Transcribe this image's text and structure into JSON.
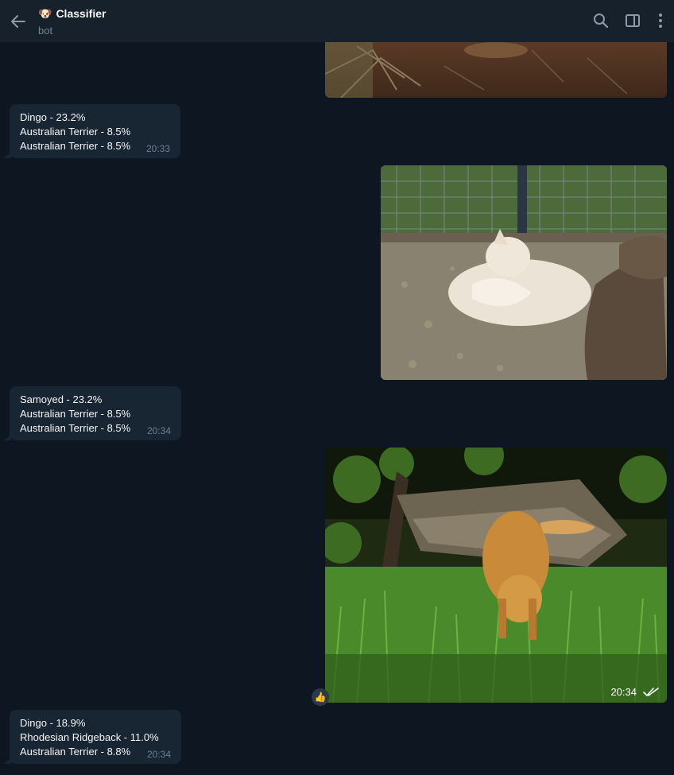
{
  "header": {
    "title_emoji": "🐶",
    "title": "Classifier",
    "subtitle": "bot",
    "icons": [
      "arrow-left-icon",
      "search-icon",
      "sidebar-toggle-icon",
      "more-vertical-icon"
    ]
  },
  "messages": [
    {
      "lines": [
        "Dingo - 23.2%",
        "Australian Terrier - 8.5%",
        "Australian Terrier - 8.5%"
      ],
      "time": "20:33"
    },
    {
      "lines": [
        "Samoyed - 23.2%",
        "Australian Terrier - 8.5%",
        "Australian Terrier - 8.5%"
      ],
      "time": "20:34"
    },
    {
      "lines": [
        "Dingo - 18.9%",
        "Rhodesian Ridgeback - 11.0%",
        "Australian Terrier - 8.8%"
      ],
      "time": "20:34"
    }
  ],
  "photo3": {
    "time": "20:34",
    "status_icon": "double-check-icon"
  },
  "reaction": {
    "emoji": "👍"
  },
  "colors": {
    "background": "#0e1621",
    "header": "#17212b",
    "bubble_in": "#182533",
    "muted": "#708499"
  }
}
